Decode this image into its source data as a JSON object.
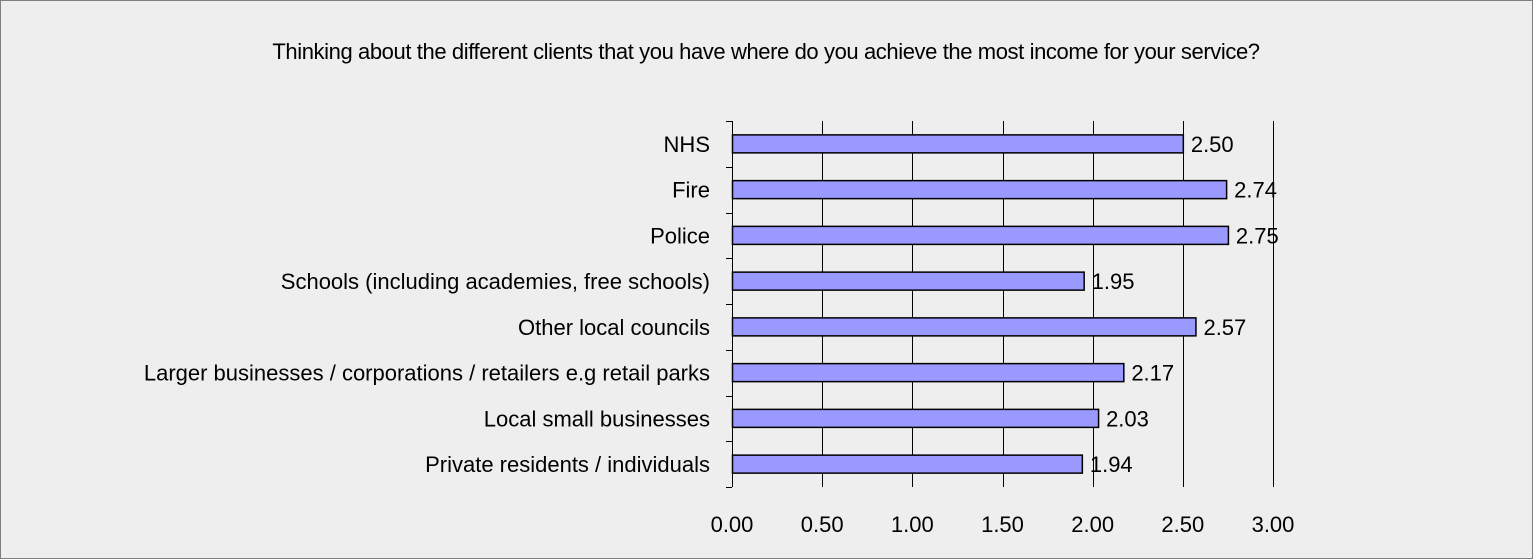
{
  "chart_data": {
    "type": "bar",
    "orientation": "horizontal",
    "title": "Thinking about the different clients that you have where do you achieve the most income for your service?",
    "categories": [
      "NHS",
      "Fire",
      "Police",
      "Schools (including academies, free schools)",
      "Other local councils",
      "Larger businesses / corporations / retailers e.g retail parks",
      "Local small businesses",
      "Private residents / individuals"
    ],
    "values": [
      2.5,
      2.74,
      2.75,
      1.95,
      2.57,
      2.17,
      2.03,
      1.94
    ],
    "value_labels": [
      "2.50",
      "2.74",
      "2.75",
      "1.95",
      "2.57",
      "2.17",
      "2.03",
      "1.94"
    ],
    "xlim": [
      0,
      3
    ],
    "xticks": [
      0,
      0.5,
      1,
      1.5,
      2,
      2.5,
      3
    ],
    "xtick_labels": [
      "0.00",
      "0.50",
      "1.00",
      "1.50",
      "2.00",
      "2.50",
      "3.00"
    ],
    "xlabel": "",
    "ylabel": "",
    "grid": "vertical",
    "legend": "none",
    "colors": {
      "bar_fill": "#9999ff",
      "bar_stroke": "#000000",
      "background": "#eeeeee",
      "grid": "#000000"
    }
  }
}
